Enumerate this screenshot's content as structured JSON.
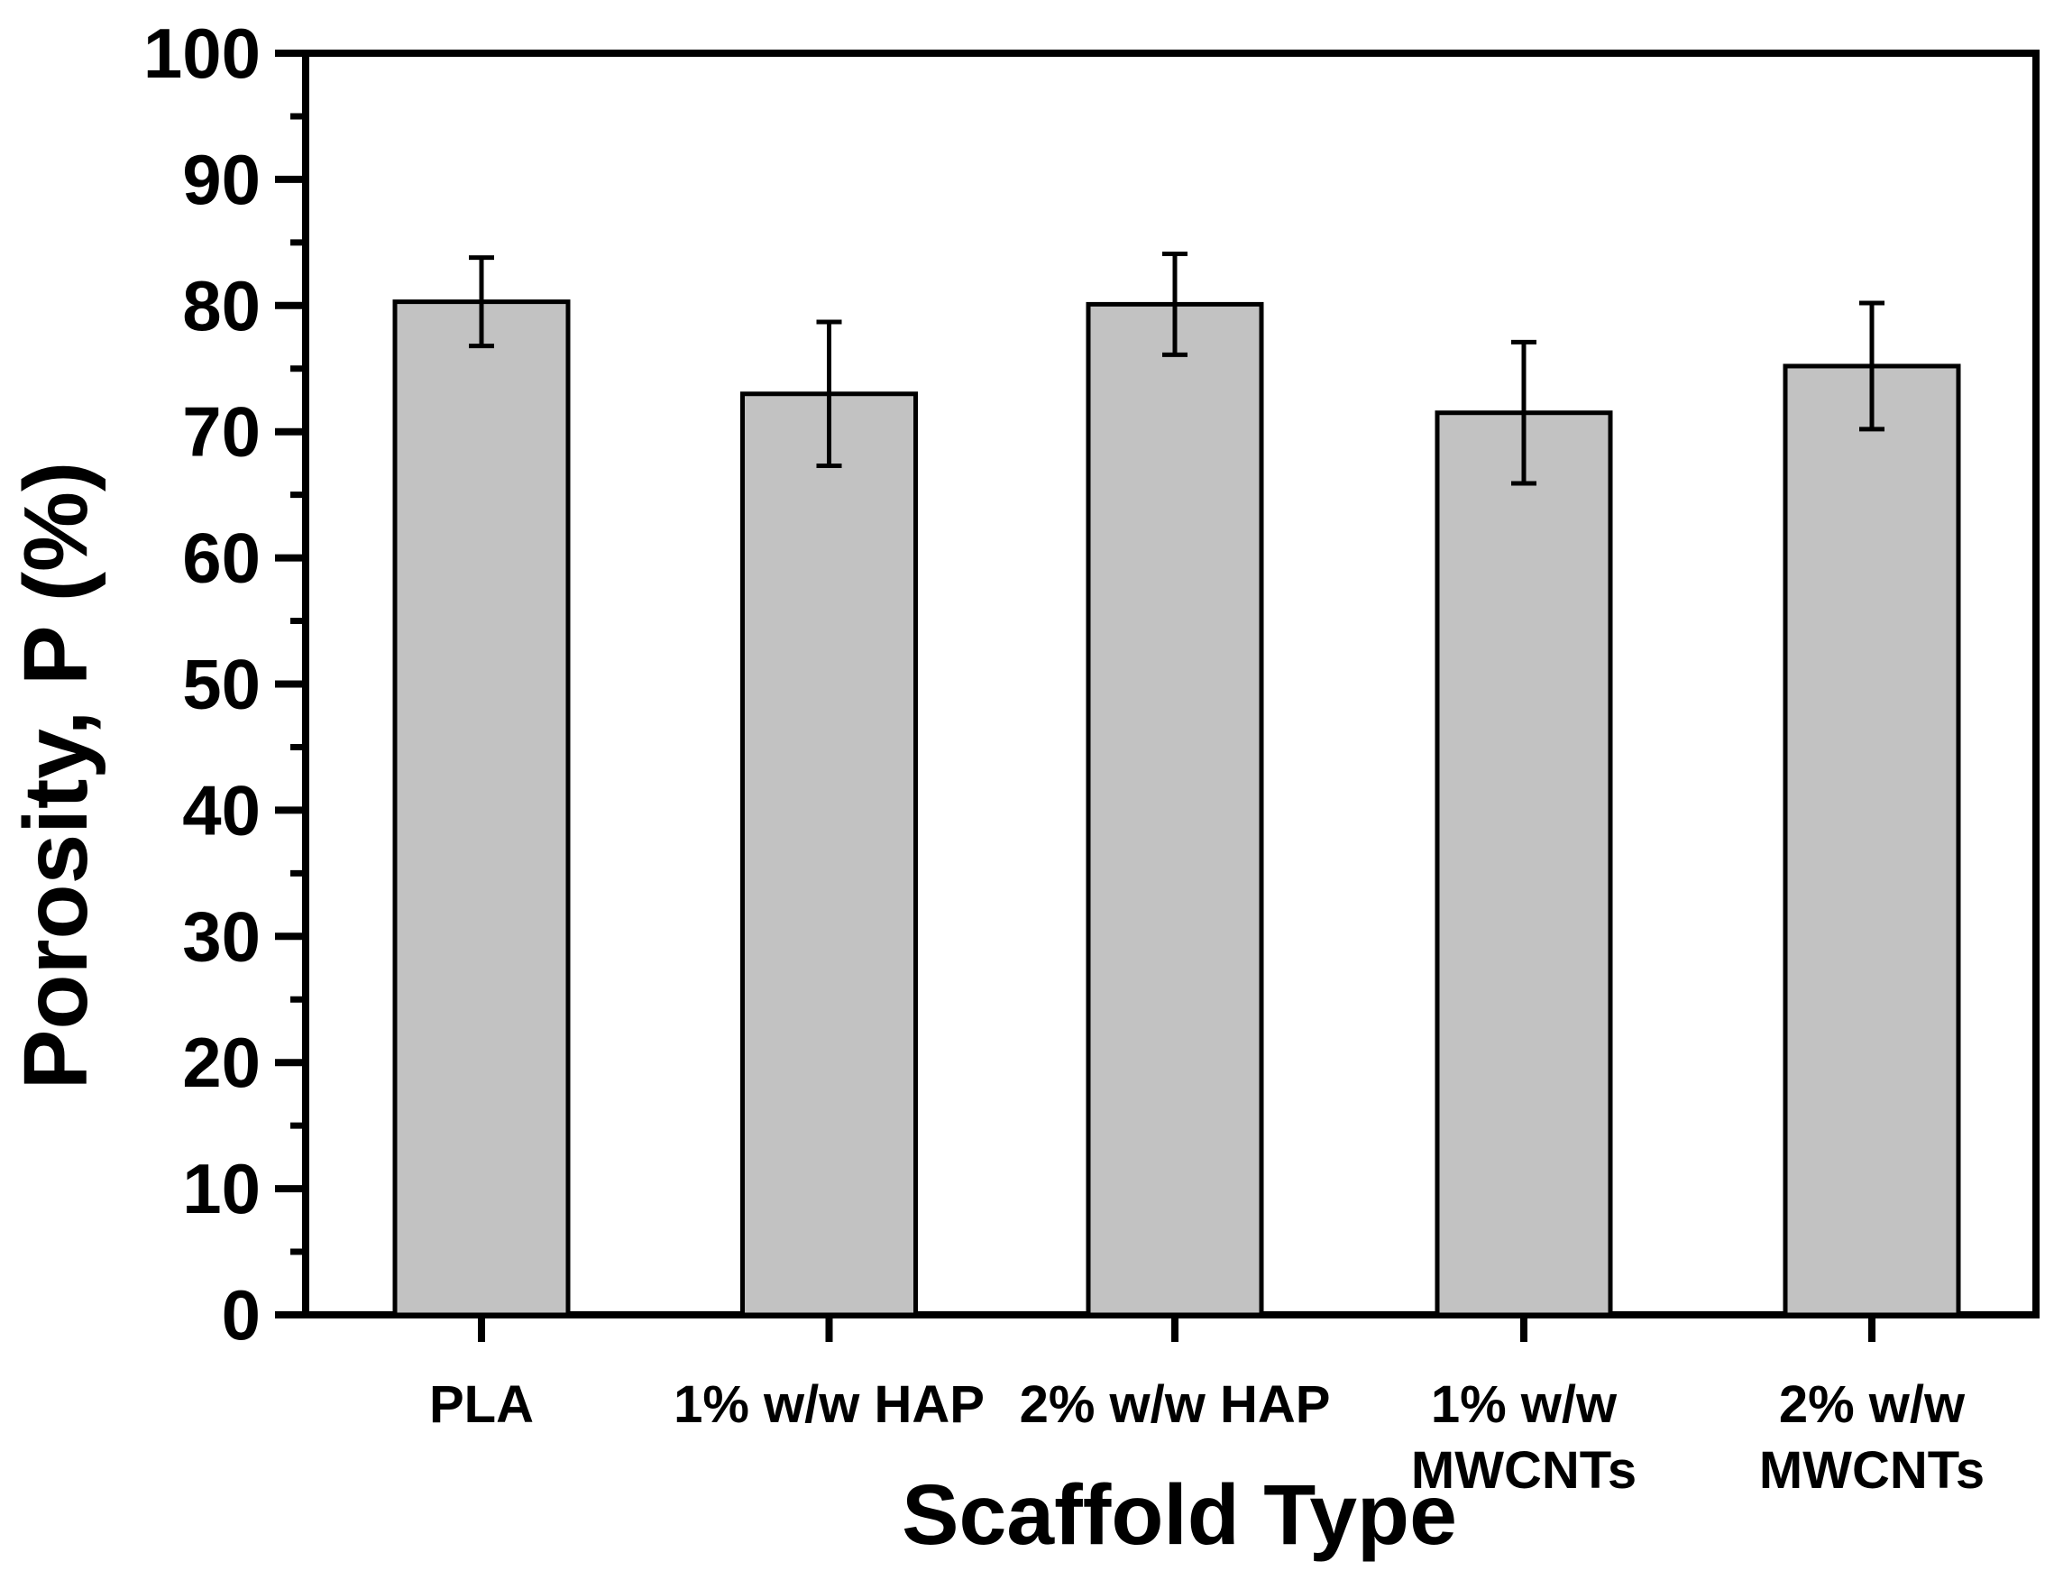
{
  "figure": {
    "background_color": "#ffffff",
    "axis_color": "#000000",
    "text_color": "#000000"
  },
  "chart_data": {
    "type": "bar",
    "title": "",
    "xlabel": "Scaffold Type",
    "ylabel": "Porosity, P (%)",
    "categories": [
      "PLA",
      "1% w/w HAP",
      "2% w/w HAP",
      "1% w/w MWCNTs",
      "2% w/w MWCNTs"
    ],
    "category_label_lines": [
      [
        "PLA"
      ],
      [
        "1% w/w HAP"
      ],
      [
        "2% w/w HAP"
      ],
      [
        "1% w/w",
        "MWCNTs"
      ],
      [
        "2% w/w",
        "MWCNTs"
      ]
    ],
    "values": [
      80.3,
      73.0,
      80.1,
      71.5,
      75.2
    ],
    "errors": [
      3.5,
      5.7,
      4.0,
      5.6,
      5.0
    ],
    "ylim": [
      0,
      100
    ],
    "ytick_interval_major": 10,
    "ytick_interval_minor": 5,
    "ytick_labels": [
      "0",
      "10",
      "20",
      "30",
      "40",
      "50",
      "60",
      "70",
      "80",
      "90",
      "100"
    ],
    "grid": false,
    "legend": false,
    "bar_fill": "#c2c2c2",
    "bar_stroke": "#000000",
    "error_bar_color": "#000000"
  }
}
